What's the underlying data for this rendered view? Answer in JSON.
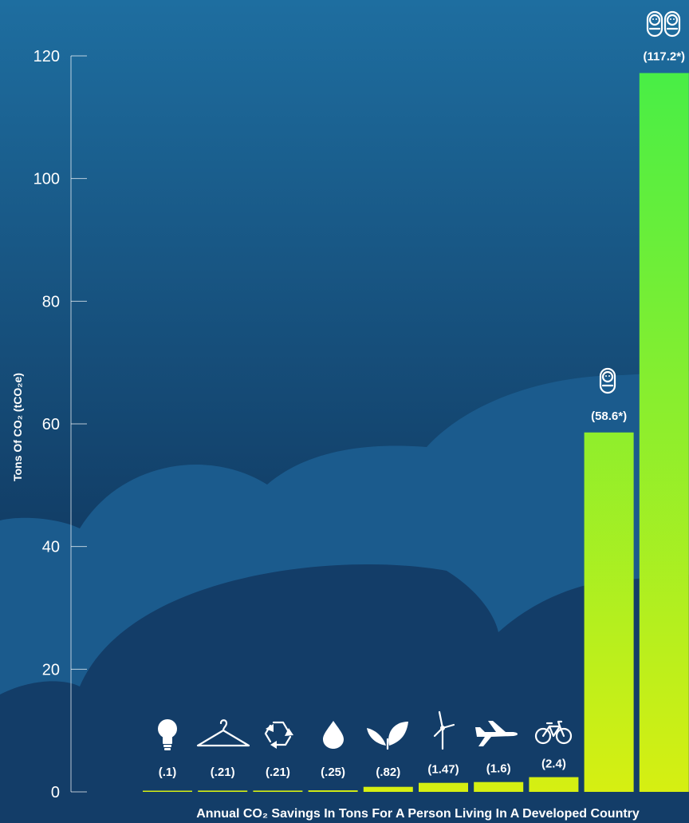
{
  "chart_data": {
    "type": "bar",
    "categories": [
      "lightbulb",
      "hanger",
      "recycle",
      "water-drop",
      "leaf",
      "wind-turbine",
      "airplane",
      "bicycle",
      "one-child",
      "two-children"
    ],
    "values": [
      0.1,
      0.21,
      0.21,
      0.25,
      0.82,
      1.47,
      1.6,
      2.4,
      58.6,
      117.2
    ],
    "value_labels": [
      "(.1)",
      "(.21)",
      "(.21)",
      "(.25)",
      "(.82)",
      "(1.47)",
      "(1.6)",
      "(2.4)",
      "(58.6*)",
      "(117.2*)"
    ],
    "icons": [
      "lightbulb-icon",
      "hanger-icon",
      "recycle-icon",
      "water-drop-icon",
      "leaf-icon",
      "wind-turbine-icon",
      "airplane-icon",
      "bicycle-icon",
      "baby-icon",
      "two-babies-icon"
    ],
    "ylabel": "Tons Of CO₂ (tCO₂e)",
    "xlabel": "Annual CO₂ Savings In Tons For A Person Living In A Developed Country",
    "ylim": [
      0,
      120
    ],
    "yticks": [
      0,
      20,
      40,
      60,
      80,
      100,
      120
    ],
    "grid": false,
    "colors": {
      "bar_top": "#48ee46",
      "bar_bottom": "#d6ef12",
      "background_top": "#1e6ea0",
      "background_bottom": "#0b2347",
      "cloud_back": "#1b5b8d",
      "cloud_front": "#133d68"
    }
  }
}
